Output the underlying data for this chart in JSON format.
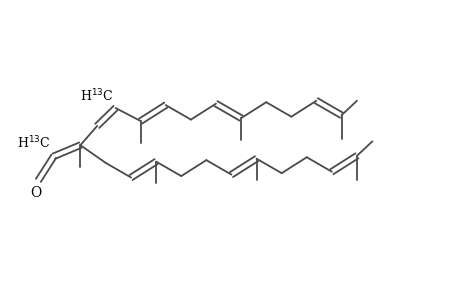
{
  "background": "#ffffff",
  "line_color": "#4a4a4a",
  "line_width": 1.3,
  "text_color": "#000000",
  "xlim": [
    0,
    9.5
  ],
  "ylim": [
    0,
    5.5
  ],
  "figsize": [
    4.6,
    3.0
  ],
  "dpi": 100,
  "label_fontsize": 9.0,
  "label_upper_13C": "H$^{13}$C",
  "label_lower_13C": "H$^{13}$C",
  "label_O": "O"
}
